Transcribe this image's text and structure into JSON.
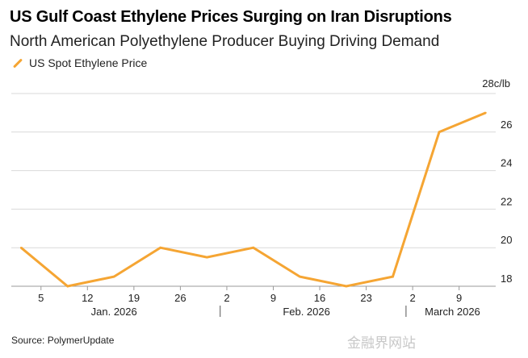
{
  "header": {
    "title": "US Gulf Coast Ethylene Prices Surging on Iran Disruptions",
    "subtitle": "North American Polyethylene Producer Buying Driving Demand"
  },
  "footer": {
    "source": "Source: PolymerUpdate",
    "watermark": "金融界网站"
  },
  "colors": {
    "series": "#f5a533",
    "grid": "#d9d9d9",
    "text": "#222222"
  },
  "chart_data": {
    "type": "line",
    "unit_label": "28c/lb",
    "ylim": [
      18,
      28
    ],
    "y_ticks": [
      18,
      20,
      22,
      24,
      26
    ],
    "grid": true,
    "legend_position": "top-left",
    "x_ticks": [
      {
        "date": "2026-01-05",
        "label": "5"
      },
      {
        "date": "2026-01-12",
        "label": "12"
      },
      {
        "date": "2026-01-19",
        "label": "19"
      },
      {
        "date": "2026-01-26",
        "label": "26"
      },
      {
        "date": "2026-02-02",
        "label": "2"
      },
      {
        "date": "2026-02-09",
        "label": "9"
      },
      {
        "date": "2026-02-16",
        "label": "16"
      },
      {
        "date": "2026-02-23",
        "label": "23"
      },
      {
        "date": "2026-03-02",
        "label": "2"
      },
      {
        "date": "2026-03-09",
        "label": "9"
      }
    ],
    "month_labels": [
      {
        "date": "2026-01-16",
        "label": "Jan. 2026"
      },
      {
        "date": "2026-02-14",
        "label": "Feb. 2026"
      },
      {
        "date": "2026-03-08",
        "label": "March 2026"
      }
    ],
    "month_separators": [
      "2026-02-01",
      "2026-03-01"
    ],
    "series": [
      {
        "name": "US Spot Ethylene Price",
        "points": [
          {
            "x": "2026-01-02",
            "y": 20.0
          },
          {
            "x": "2026-01-09",
            "y": 18.0
          },
          {
            "x": "2026-01-16",
            "y": 18.5
          },
          {
            "x": "2026-01-23",
            "y": 20.0
          },
          {
            "x": "2026-01-30",
            "y": 19.5
          },
          {
            "x": "2026-02-06",
            "y": 20.0
          },
          {
            "x": "2026-02-13",
            "y": 18.5
          },
          {
            "x": "2026-02-20",
            "y": 18.0
          },
          {
            "x": "2026-02-27",
            "y": 18.5
          },
          {
            "x": "2026-03-06",
            "y": 26.0
          },
          {
            "x": "2026-03-13",
            "y": 27.0
          }
        ]
      }
    ]
  }
}
